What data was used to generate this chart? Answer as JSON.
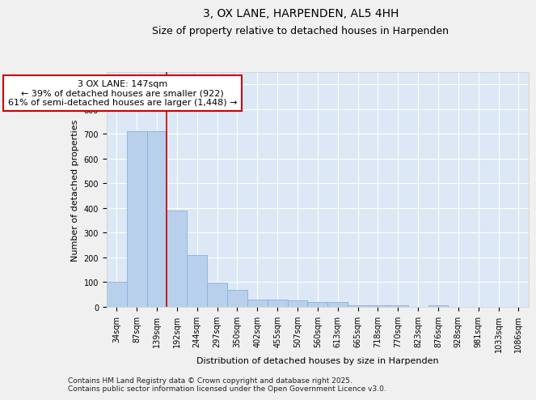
{
  "title": "3, OX LANE, HARPENDEN, AL5 4HH",
  "subtitle": "Size of property relative to detached houses in Harpenden",
  "xlabel": "Distribution of detached houses by size in Harpenden",
  "ylabel": "Number of detached properties",
  "categories": [
    "34sqm",
    "87sqm",
    "139sqm",
    "192sqm",
    "244sqm",
    "297sqm",
    "350sqm",
    "402sqm",
    "455sqm",
    "507sqm",
    "560sqm",
    "613sqm",
    "665sqm",
    "718sqm",
    "770sqm",
    "823sqm",
    "876sqm",
    "928sqm",
    "981sqm",
    "1033sqm",
    "1086sqm"
  ],
  "values": [
    100,
    710,
    710,
    390,
    210,
    98,
    70,
    30,
    30,
    25,
    20,
    20,
    7,
    5,
    7,
    0,
    7,
    0,
    0,
    0,
    0
  ],
  "bar_color": "#b8d0ec",
  "bar_edge_color": "#8ab0d8",
  "vline_x": 2,
  "vline_color": "#cc0000",
  "annotation_text": "3 OX LANE: 147sqm\n← 39% of detached houses are smaller (922)\n61% of semi-detached houses are larger (1,448) →",
  "annotation_box_facecolor": "#ffffff",
  "annotation_box_edgecolor": "#cc0000",
  "ylim": [
    0,
    950
  ],
  "yticks": [
    0,
    100,
    200,
    300,
    400,
    500,
    600,
    700,
    800,
    900
  ],
  "plot_bg_color": "#dce8f5",
  "fig_bg_color": "#f0f0f0",
  "grid_color": "#ffffff",
  "footer_line1": "Contains HM Land Registry data © Crown copyright and database right 2025.",
  "footer_line2": "Contains public sector information licensed under the Open Government Licence v3.0.",
  "title_fontsize": 10,
  "subtitle_fontsize": 9,
  "axis_label_fontsize": 8,
  "tick_fontsize": 7,
  "annotation_fontsize": 8,
  "footer_fontsize": 6.5
}
